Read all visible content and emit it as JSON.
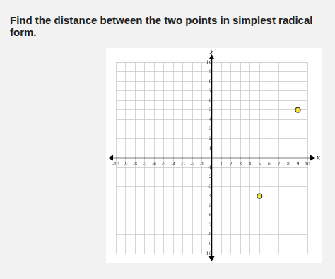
{
  "chart_data": {
    "type": "scatter",
    "title": "Find the distance between the two points in simplest radical form.",
    "x_label": "x",
    "y_label": "y",
    "x": [
      9,
      5
    ],
    "values": [
      5,
      -4
    ],
    "color": "#f2e33a",
    "marker": "circle",
    "xlim": [
      -10,
      10
    ],
    "ylim": [
      -10,
      10
    ],
    "xticks": [
      -10,
      -9,
      -8,
      -7,
      -6,
      -5,
      -4,
      -3,
      -2,
      -1,
      1,
      2,
      3,
      4,
      5,
      6,
      7,
      8,
      9,
      10
    ],
    "yticks": [
      -10,
      -9,
      -8,
      -7,
      -6,
      -5,
      -4,
      -3,
      -2,
      -1,
      1,
      2,
      3,
      4,
      5,
      6,
      7,
      8,
      9,
      10
    ],
    "grid": true
  }
}
